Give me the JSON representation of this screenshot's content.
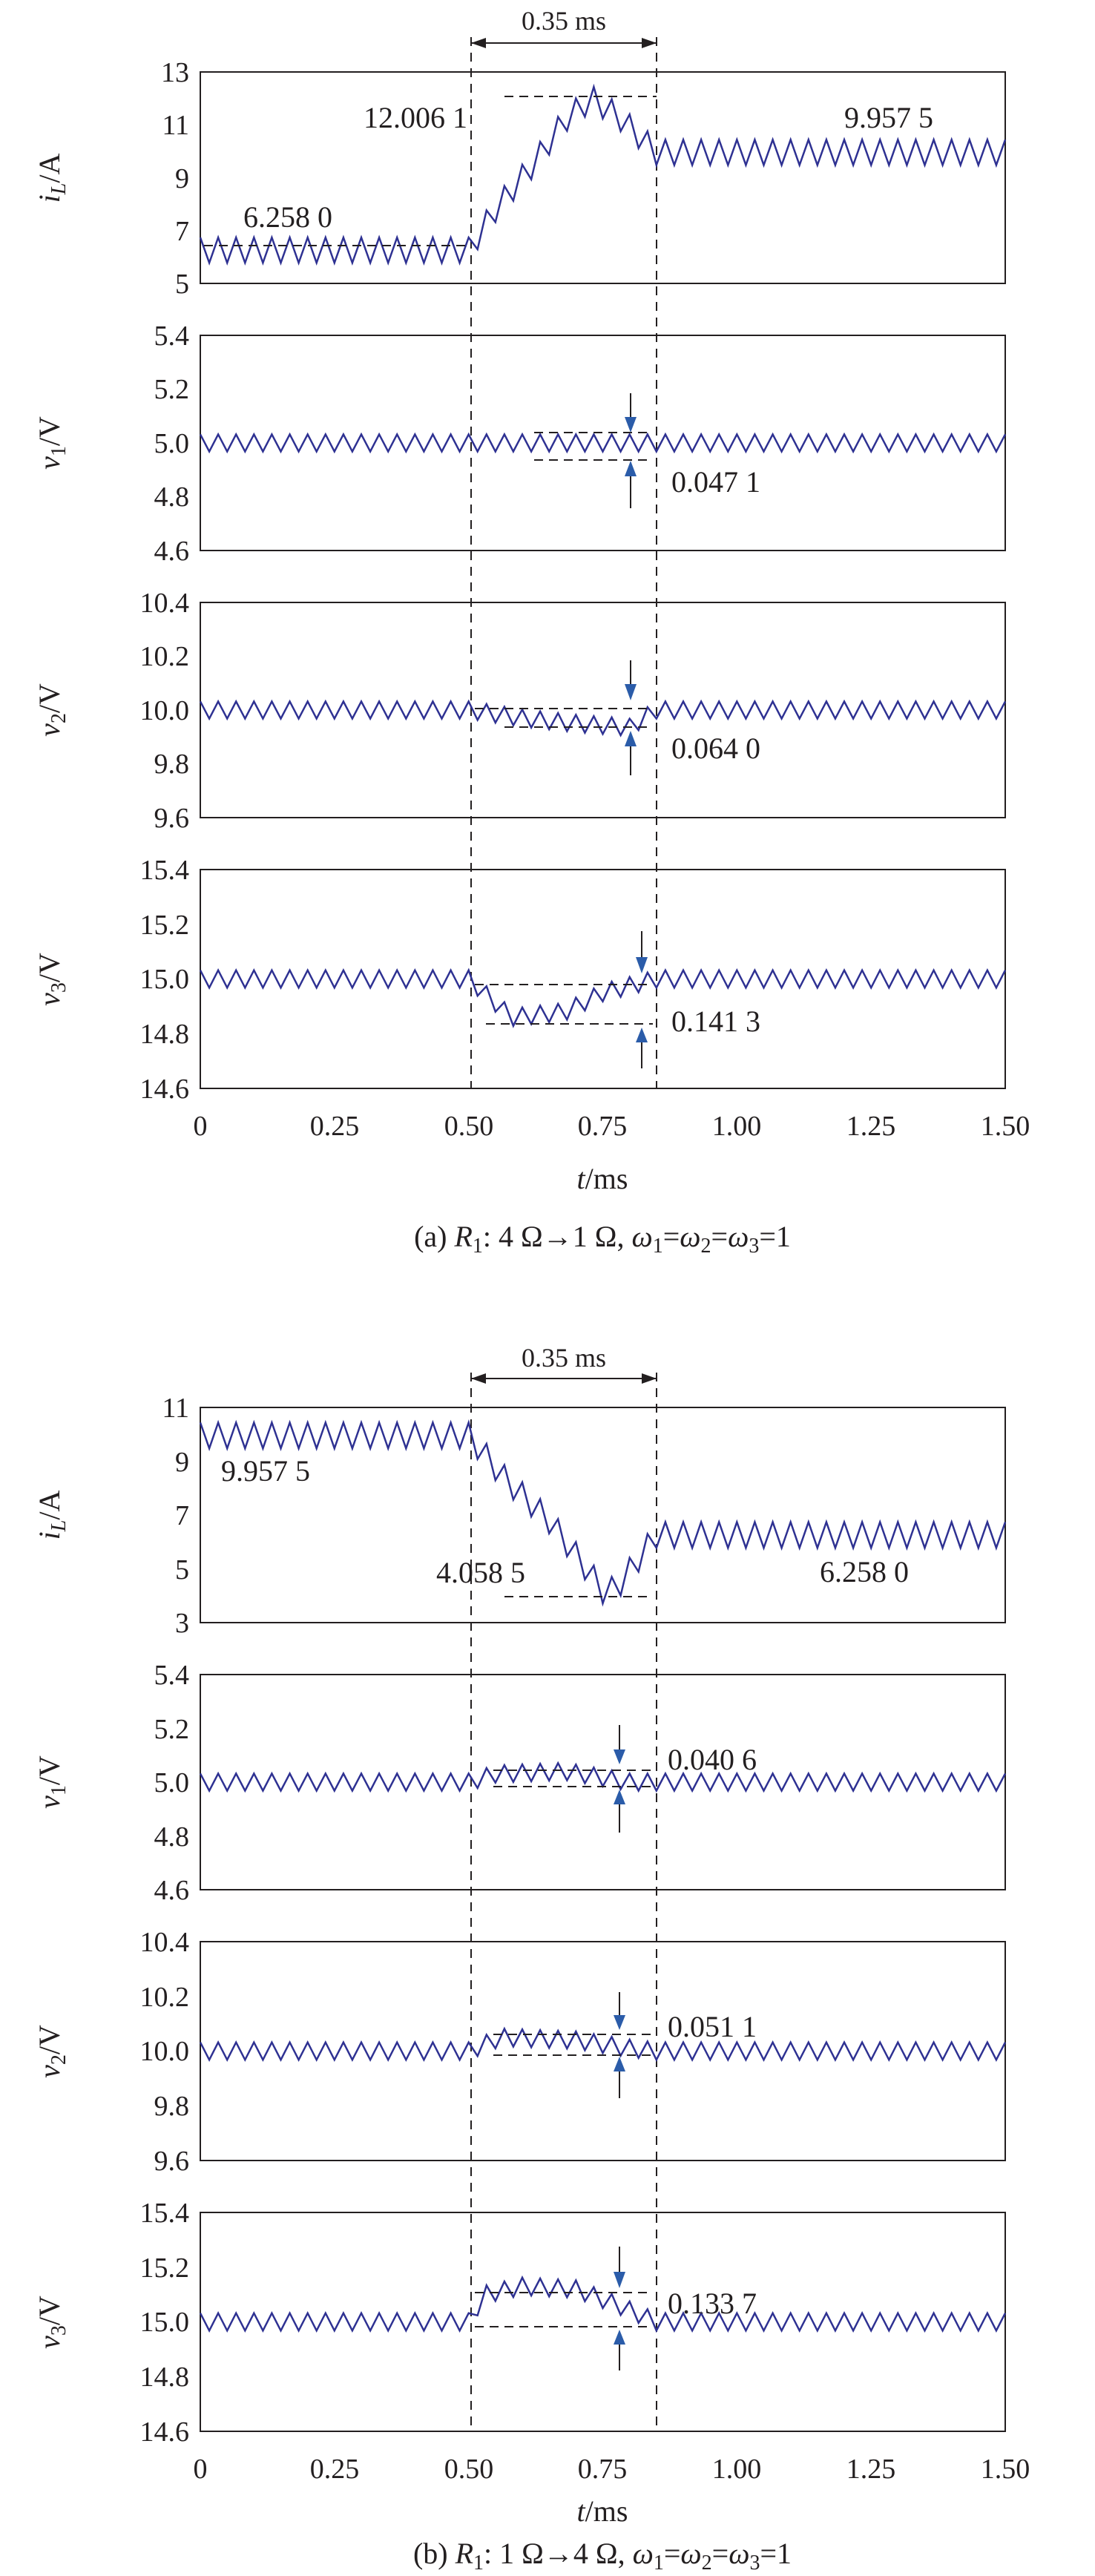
{
  "colors": {
    "axis": "#231f20",
    "trace": "#2e3192",
    "dashes": "#231f20",
    "arrow": "#2b5ca9",
    "background": "#ffffff"
  },
  "chart_data": [
    {
      "type": "line",
      "caption": {
        "part": "(a) ",
        "R": "R",
        "sub1": "1",
        "text1": ": 4 Ω→1 Ω, ",
        "w": "ω",
        "text2": "=",
        "text3": "=",
        "text4": "=1",
        "s1": "1",
        "s2": "2",
        "s3": "3"
      },
      "xlabel": {
        "t": "t",
        "unit": "/ms"
      },
      "x_ticks": [
        "0",
        "0.25",
        "0.50",
        "0.75",
        "1.00",
        "1.25",
        "1.50"
      ],
      "x_range": [
        0,
        1.5
      ],
      "interval": {
        "start_ms": 0.5,
        "end_ms": 0.85,
        "label": "0.35 ms"
      },
      "panels": [
        {
          "ylabel": {
            "sym": "i",
            "sub": "L",
            "unit": "/A"
          },
          "y_range": [
            5,
            13
          ],
          "y_ticks": [
            "13",
            "11",
            "9",
            "7",
            "5"
          ],
          "series": [
            {
              "x": [
                0,
                0.5,
                0.55,
                0.62,
                0.68,
                0.73,
                0.78,
                0.85,
                1.5
              ],
              "y": [
                6.258,
                6.258,
                7.8,
                9.5,
                11.2,
                12.0,
                11.3,
                9.9575,
                9.9575
              ]
            }
          ],
          "annotations": [
            "6.258 0",
            "12.006 1",
            "9.957 5"
          ],
          "annotation_values": [
            6.258,
            12.0061,
            9.9575
          ]
        },
        {
          "ylabel": {
            "sym": "v",
            "sub": "1",
            "unit": "/V"
          },
          "y_range": [
            4.6,
            5.4
          ],
          "y_ticks": [
            "5.4",
            "5.2",
            "5.0",
            "4.8",
            "4.6"
          ],
          "series": [
            {
              "x": [
                0,
                0.5,
                0.85,
                1.5
              ],
              "y": [
                5.0,
                5.0,
                5.0,
                5.0
              ]
            }
          ],
          "annotations": [
            "0.047 1"
          ],
          "annotation_values": [
            0.0471
          ]
        },
        {
          "ylabel": {
            "sym": "v",
            "sub": "2",
            "unit": "/V"
          },
          "y_range": [
            9.6,
            10.4
          ],
          "y_ticks": [
            "10.4",
            "10.2",
            "10.0",
            "9.8",
            "9.6"
          ],
          "series": [
            {
              "x": [
                0,
                0.5,
                0.6,
                0.7,
                0.8,
                0.85,
                1.5
              ],
              "y": [
                10.0,
                10.0,
                9.97,
                9.95,
                9.936,
                10.0,
                10.0
              ]
            }
          ],
          "annotations": [
            "0.064 0"
          ],
          "annotation_values": [
            0.064
          ]
        },
        {
          "ylabel": {
            "sym": "v",
            "sub": "3",
            "unit": "/V"
          },
          "y_range": [
            14.6,
            15.4
          ],
          "y_ticks": [
            "15.4",
            "15.2",
            "15.0",
            "14.8",
            "14.6"
          ],
          "series": [
            {
              "x": [
                0,
                0.5,
                0.58,
                0.68,
                0.75,
                0.85,
                1.5
              ],
              "y": [
                15.0,
                15.0,
                14.86,
                14.88,
                14.95,
                15.0,
                15.0
              ]
            }
          ],
          "annotations": [
            "0.141 3"
          ],
          "annotation_values": [
            0.1413
          ]
        }
      ]
    },
    {
      "type": "line",
      "caption": {
        "part": "(b) ",
        "R": "R",
        "sub1": "1",
        "text1": ": 1 Ω→4 Ω, ",
        "w": "ω",
        "text2": "=",
        "text3": "=",
        "text4": "=1",
        "s1": "1",
        "s2": "2",
        "s3": "3"
      },
      "xlabel": {
        "t": "t",
        "unit": "/ms"
      },
      "x_ticks": [
        "0",
        "0.25",
        "0.50",
        "0.75",
        "1.00",
        "1.25",
        "1.50"
      ],
      "x_range": [
        0,
        1.5
      ],
      "interval": {
        "start_ms": 0.5,
        "end_ms": 0.85,
        "label": "0.35 ms"
      },
      "panels": [
        {
          "ylabel": {
            "sym": "i",
            "sub": "L",
            "unit": "/A"
          },
          "y_range": [
            3,
            11
          ],
          "y_ticks": [
            "11",
            "9",
            "7",
            "5",
            "3"
          ],
          "series": [
            {
              "x": [
                0,
                0.5,
                0.57,
                0.65,
                0.72,
                0.755,
                0.78,
                0.85,
                1.5
              ],
              "y": [
                9.9575,
                9.9575,
                8.3,
                6.8,
                5.0,
                4.06,
                4.4,
                6.258,
                6.258
              ]
            }
          ],
          "annotations": [
            "9.957 5",
            "4.058 5",
            "6.258 0"
          ],
          "annotation_values": [
            9.9575,
            4.0585,
            6.258
          ]
        },
        {
          "ylabel": {
            "sym": "v",
            "sub": "1",
            "unit": "/V"
          },
          "y_range": [
            4.6,
            5.4
          ],
          "y_ticks": [
            "5.4",
            "5.2",
            "5.0",
            "4.8",
            "4.6"
          ],
          "series": [
            {
              "x": [
                0,
                0.5,
                0.55,
                0.68,
                0.8,
                0.85,
                1.5
              ],
              "y": [
                5.0,
                5.0,
                5.03,
                5.04,
                5.0,
                5.0,
                5.0
              ]
            }
          ],
          "annotations": [
            "0.040 6"
          ],
          "annotation_values": [
            0.0406
          ]
        },
        {
          "ylabel": {
            "sym": "v",
            "sub": "2",
            "unit": "/V"
          },
          "y_range": [
            9.6,
            10.4
          ],
          "y_ticks": [
            "10.4",
            "10.2",
            "10.0",
            "9.8",
            "9.6"
          ],
          "series": [
            {
              "x": [
                0,
                0.5,
                0.56,
                0.7,
                0.8,
                0.85,
                1.5
              ],
              "y": [
                10.0,
                10.0,
                10.05,
                10.04,
                10.01,
                10.0,
                10.0
              ]
            }
          ],
          "annotations": [
            "0.051 1"
          ],
          "annotation_values": [
            0.0511
          ]
        },
        {
          "ylabel": {
            "sym": "v",
            "sub": "3",
            "unit": "/V"
          },
          "y_range": [
            14.6,
            15.4
          ],
          "y_ticks": [
            "15.4",
            "15.2",
            "15.0",
            "14.8",
            "14.6"
          ],
          "series": [
            {
              "x": [
                0,
                0.5,
                0.53,
                0.6,
                0.7,
                0.78,
                0.85,
                1.5
              ],
              "y": [
                15.0,
                15.0,
                15.1,
                15.13,
                15.12,
                15.06,
                15.0,
                15.0
              ]
            }
          ],
          "annotations": [
            "0.133 7"
          ],
          "annotation_values": [
            0.1337
          ]
        }
      ]
    }
  ]
}
